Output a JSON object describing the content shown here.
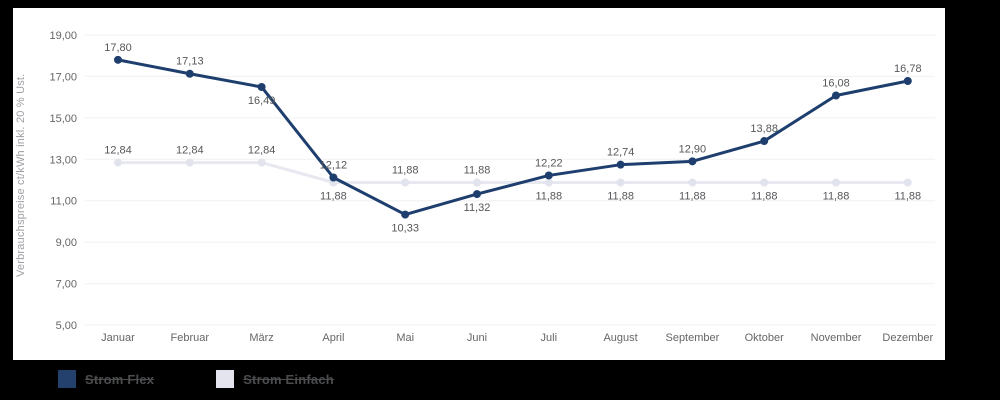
{
  "page": {
    "background": "#000000",
    "panel_background": "#ffffff"
  },
  "chart_data": {
    "type": "line",
    "title": "",
    "ylabel": "Verbrauchspreise ct/kWh inkl. 20 % Ust.",
    "categories": [
      "Januar",
      "Februar",
      "März",
      "April",
      "Mai",
      "Juni",
      "Juli",
      "August",
      "September",
      "Oktober",
      "November",
      "Dezember"
    ],
    "series": [
      {
        "name": "Strom Flex",
        "color": "#1e3f6e",
        "marker_color": "#1e3f6e",
        "values": [
          17.8,
          17.13,
          16.49,
          12.12,
          10.33,
          11.32,
          12.22,
          12.74,
          12.9,
          13.88,
          16.08,
          16.78
        ],
        "data_labels": [
          "17,80",
          "17,13",
          "16,49",
          "12,12",
          "10,33",
          "11,32",
          "12,22",
          "12,74",
          "12,90",
          "13,88",
          "16,08",
          "16,78"
        ],
        "label_position": [
          "above",
          "above",
          "below",
          "above",
          "below",
          "below",
          "above",
          "above",
          "above",
          "above",
          "above",
          "above"
        ]
      },
      {
        "name": "Strom Einfach",
        "color": "#e7e8f0",
        "marker_color": "#e1e3ed",
        "values": [
          12.84,
          12.84,
          12.84,
          11.88,
          11.88,
          11.88,
          11.88,
          11.88,
          11.88,
          11.88,
          11.88,
          11.88
        ],
        "data_labels": [
          "12,84",
          "12,84",
          "12,84",
          "11,88",
          "11,88",
          "11,88",
          "11,88",
          "11,88",
          "11,88",
          "11,88",
          "11,88",
          "11,88"
        ],
        "label_position": [
          "above",
          "above",
          "above",
          "below",
          "above",
          "above",
          "below",
          "below",
          "below",
          "below",
          "below",
          "below"
        ]
      }
    ],
    "ylim": [
      5,
      19
    ],
    "ytick_values": [
      19,
      17,
      15,
      13,
      11,
      9,
      7,
      5
    ],
    "ytick_labels": [
      "19,00",
      "17,00",
      "15,00",
      "13,00",
      "11,00",
      "9,00",
      "7,00",
      "5,00"
    ],
    "grid": "horizontal",
    "gridline_color": "#f0f0f2",
    "axis_text_color": "#666666",
    "data_label_color": "#56575a",
    "ylabel_color": "#9fa0a4",
    "legend_position": "bottom-left"
  },
  "legend": {
    "items": [
      {
        "label": "Strom Flex",
        "color": "#24416e"
      },
      {
        "label": "Strom Einfach",
        "color": "#e3e4ee"
      }
    ]
  }
}
